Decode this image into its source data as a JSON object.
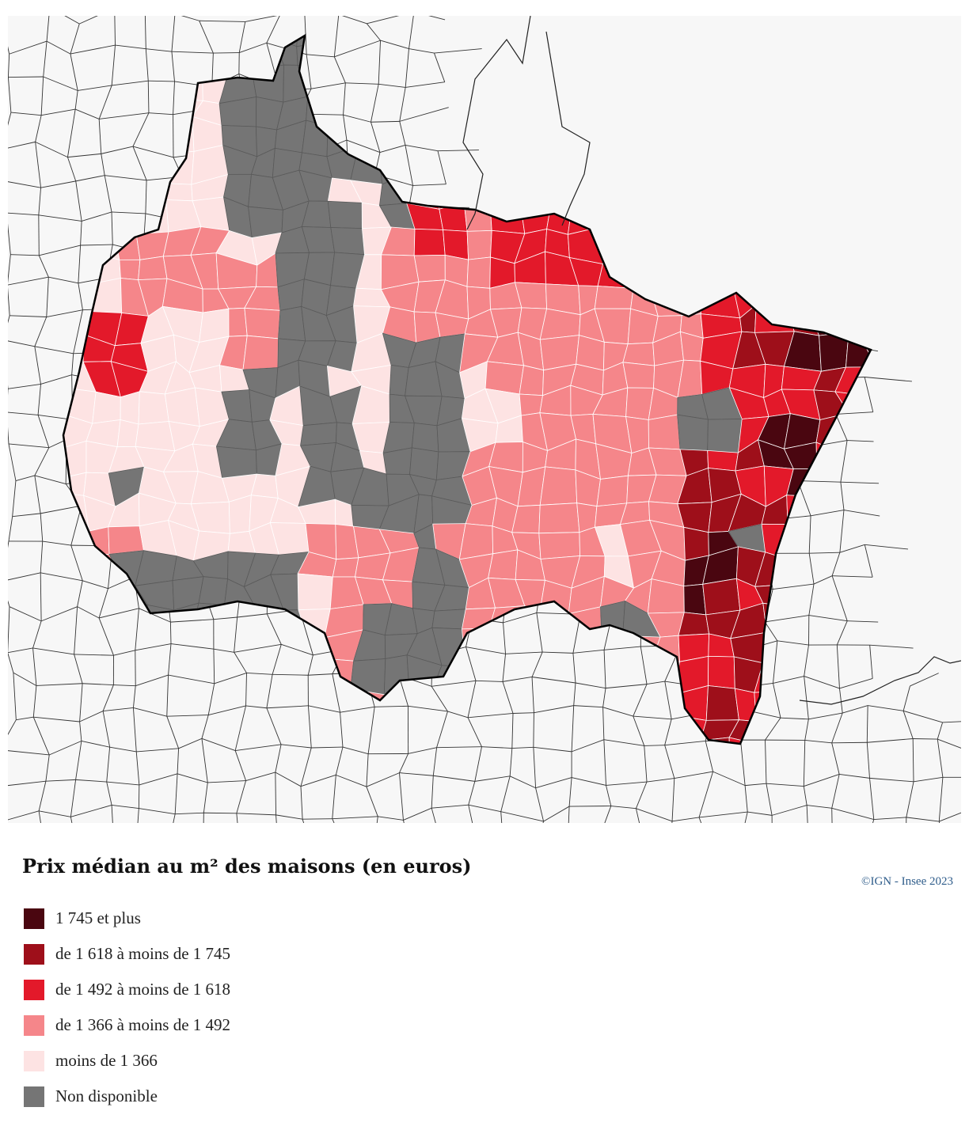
{
  "legend": {
    "title": "Prix médian au m² des maisons (en euros)",
    "classes": [
      {
        "key": "c1",
        "label": "1 745 et plus",
        "color": "#4a0610"
      },
      {
        "key": "c2",
        "label": "de 1 618 à moins de 1 745",
        "color": "#9e0f1a"
      },
      {
        "key": "c3",
        "label": "de 1 492 à moins de 1 618",
        "color": "#e3192a"
      },
      {
        "key": "c4",
        "label": "de 1 366 à moins de 1 492",
        "color": "#f5868a"
      },
      {
        "key": "c5",
        "label": "moins de 1 366",
        "color": "#fde3e3"
      },
      {
        "key": "na",
        "label": "Non disponible",
        "color": "#757575"
      }
    ]
  },
  "credit": "©IGN - Insee 2023",
  "map": {
    "background_color": "#f7f7f7",
    "outside_fill": "#f7f7f7",
    "boundary_color": "#000000"
  }
}
